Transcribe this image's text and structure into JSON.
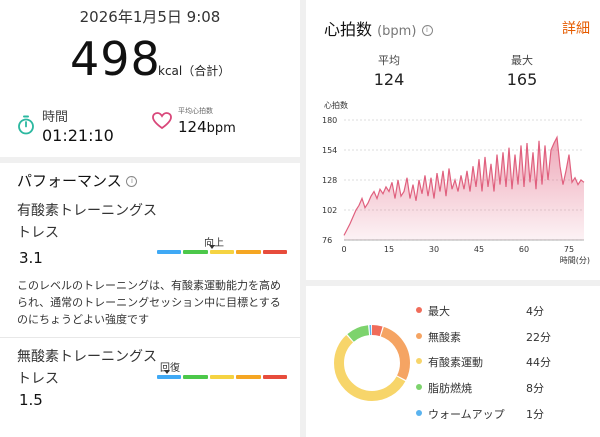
{
  "summary": {
    "datetime": "2026年1月5日 9:08",
    "calories": "498",
    "calories_unit": "kcal（合計）",
    "time_label": "時間",
    "time_value": "01:21:10",
    "avg_hr_label": "平均心拍数",
    "avg_hr_value": "124",
    "avg_hr_unit": "bpm"
  },
  "performance": {
    "title": "パフォーマンス",
    "aerobic": {
      "label": "有酸素トレーニングストレス",
      "value": "3.1",
      "marker_label": "向上",
      "description": "このレベルのトレーニングは、有酸素運動能力を高められ、通常のトレーニングセッション中に目標とするのにちょうどよい強度です"
    },
    "anaerobic": {
      "label": "無酸素トレーニングストレス",
      "value": "1.5",
      "marker_label": "回復"
    },
    "scale_colors": [
      "#3fa9f5",
      "#4cc84a",
      "#f5d342",
      "#f5a623",
      "#e74c3c"
    ]
  },
  "heart_rate": {
    "title": "心拍数",
    "unit": "(bpm)",
    "detail_link": "詳細",
    "avg_label": "平均",
    "avg_value": "124",
    "max_label": "最大",
    "max_value": "165"
  },
  "chart_data": {
    "type": "area",
    "ylabel": "心拍数",
    "xlabel": "時間(分)",
    "y_ticks": [
      76,
      102,
      128,
      154,
      180
    ],
    "x_ticks": [
      0,
      15,
      30,
      45,
      60,
      75
    ],
    "ylim": [
      76,
      180
    ],
    "xlim": [
      0,
      80
    ],
    "color": "#e0607e",
    "x": [
      0,
      1,
      2,
      3,
      4,
      5,
      6,
      7,
      8,
      9,
      10,
      11,
      12,
      13,
      14,
      15,
      16,
      17,
      18,
      19,
      20,
      21,
      22,
      23,
      24,
      25,
      26,
      27,
      28,
      29,
      30,
      31,
      32,
      33,
      34,
      35,
      36,
      37,
      38,
      39,
      40,
      41,
      42,
      43,
      44,
      45,
      46,
      47,
      48,
      49,
      50,
      51,
      52,
      53,
      54,
      55,
      56,
      57,
      58,
      59,
      60,
      61,
      62,
      63,
      64,
      65,
      66,
      67,
      68,
      69,
      70,
      71,
      72,
      73,
      74,
      75,
      76,
      77,
      78,
      79,
      80
    ],
    "values": [
      80,
      85,
      90,
      96,
      102,
      106,
      112,
      104,
      108,
      114,
      118,
      112,
      120,
      116,
      122,
      118,
      126,
      112,
      128,
      114,
      118,
      130,
      112,
      124,
      110,
      128,
      116,
      132,
      114,
      130,
      112,
      134,
      118,
      136,
      114,
      138,
      120,
      128,
      118,
      132,
      120,
      136,
      118,
      140,
      122,
      146,
      118,
      148,
      122,
      142,
      118,
      150,
      124,
      152,
      122,
      156,
      120,
      150,
      124,
      158,
      122,
      160,
      126,
      152,
      120,
      162,
      124,
      158,
      128,
      154,
      160,
      165,
      140,
      124,
      136,
      150,
      126,
      130,
      124,
      128,
      126
    ]
  },
  "zones": {
    "items": [
      {
        "name": "最大",
        "value": "4分",
        "minutes": 4,
        "color": "#f06c5a"
      },
      {
        "name": "無酸素",
        "value": "22分",
        "minutes": 22,
        "color": "#f5a463"
      },
      {
        "name": "有酸素運動",
        "value": "44分",
        "minutes": 44,
        "color": "#f7d56a"
      },
      {
        "name": "脂肪燃焼",
        "value": "8分",
        "minutes": 8,
        "color": "#7dd36d"
      },
      {
        "name": "ウォームアップ",
        "value": "1分",
        "minutes": 1,
        "color": "#5ab3ef"
      }
    ]
  }
}
